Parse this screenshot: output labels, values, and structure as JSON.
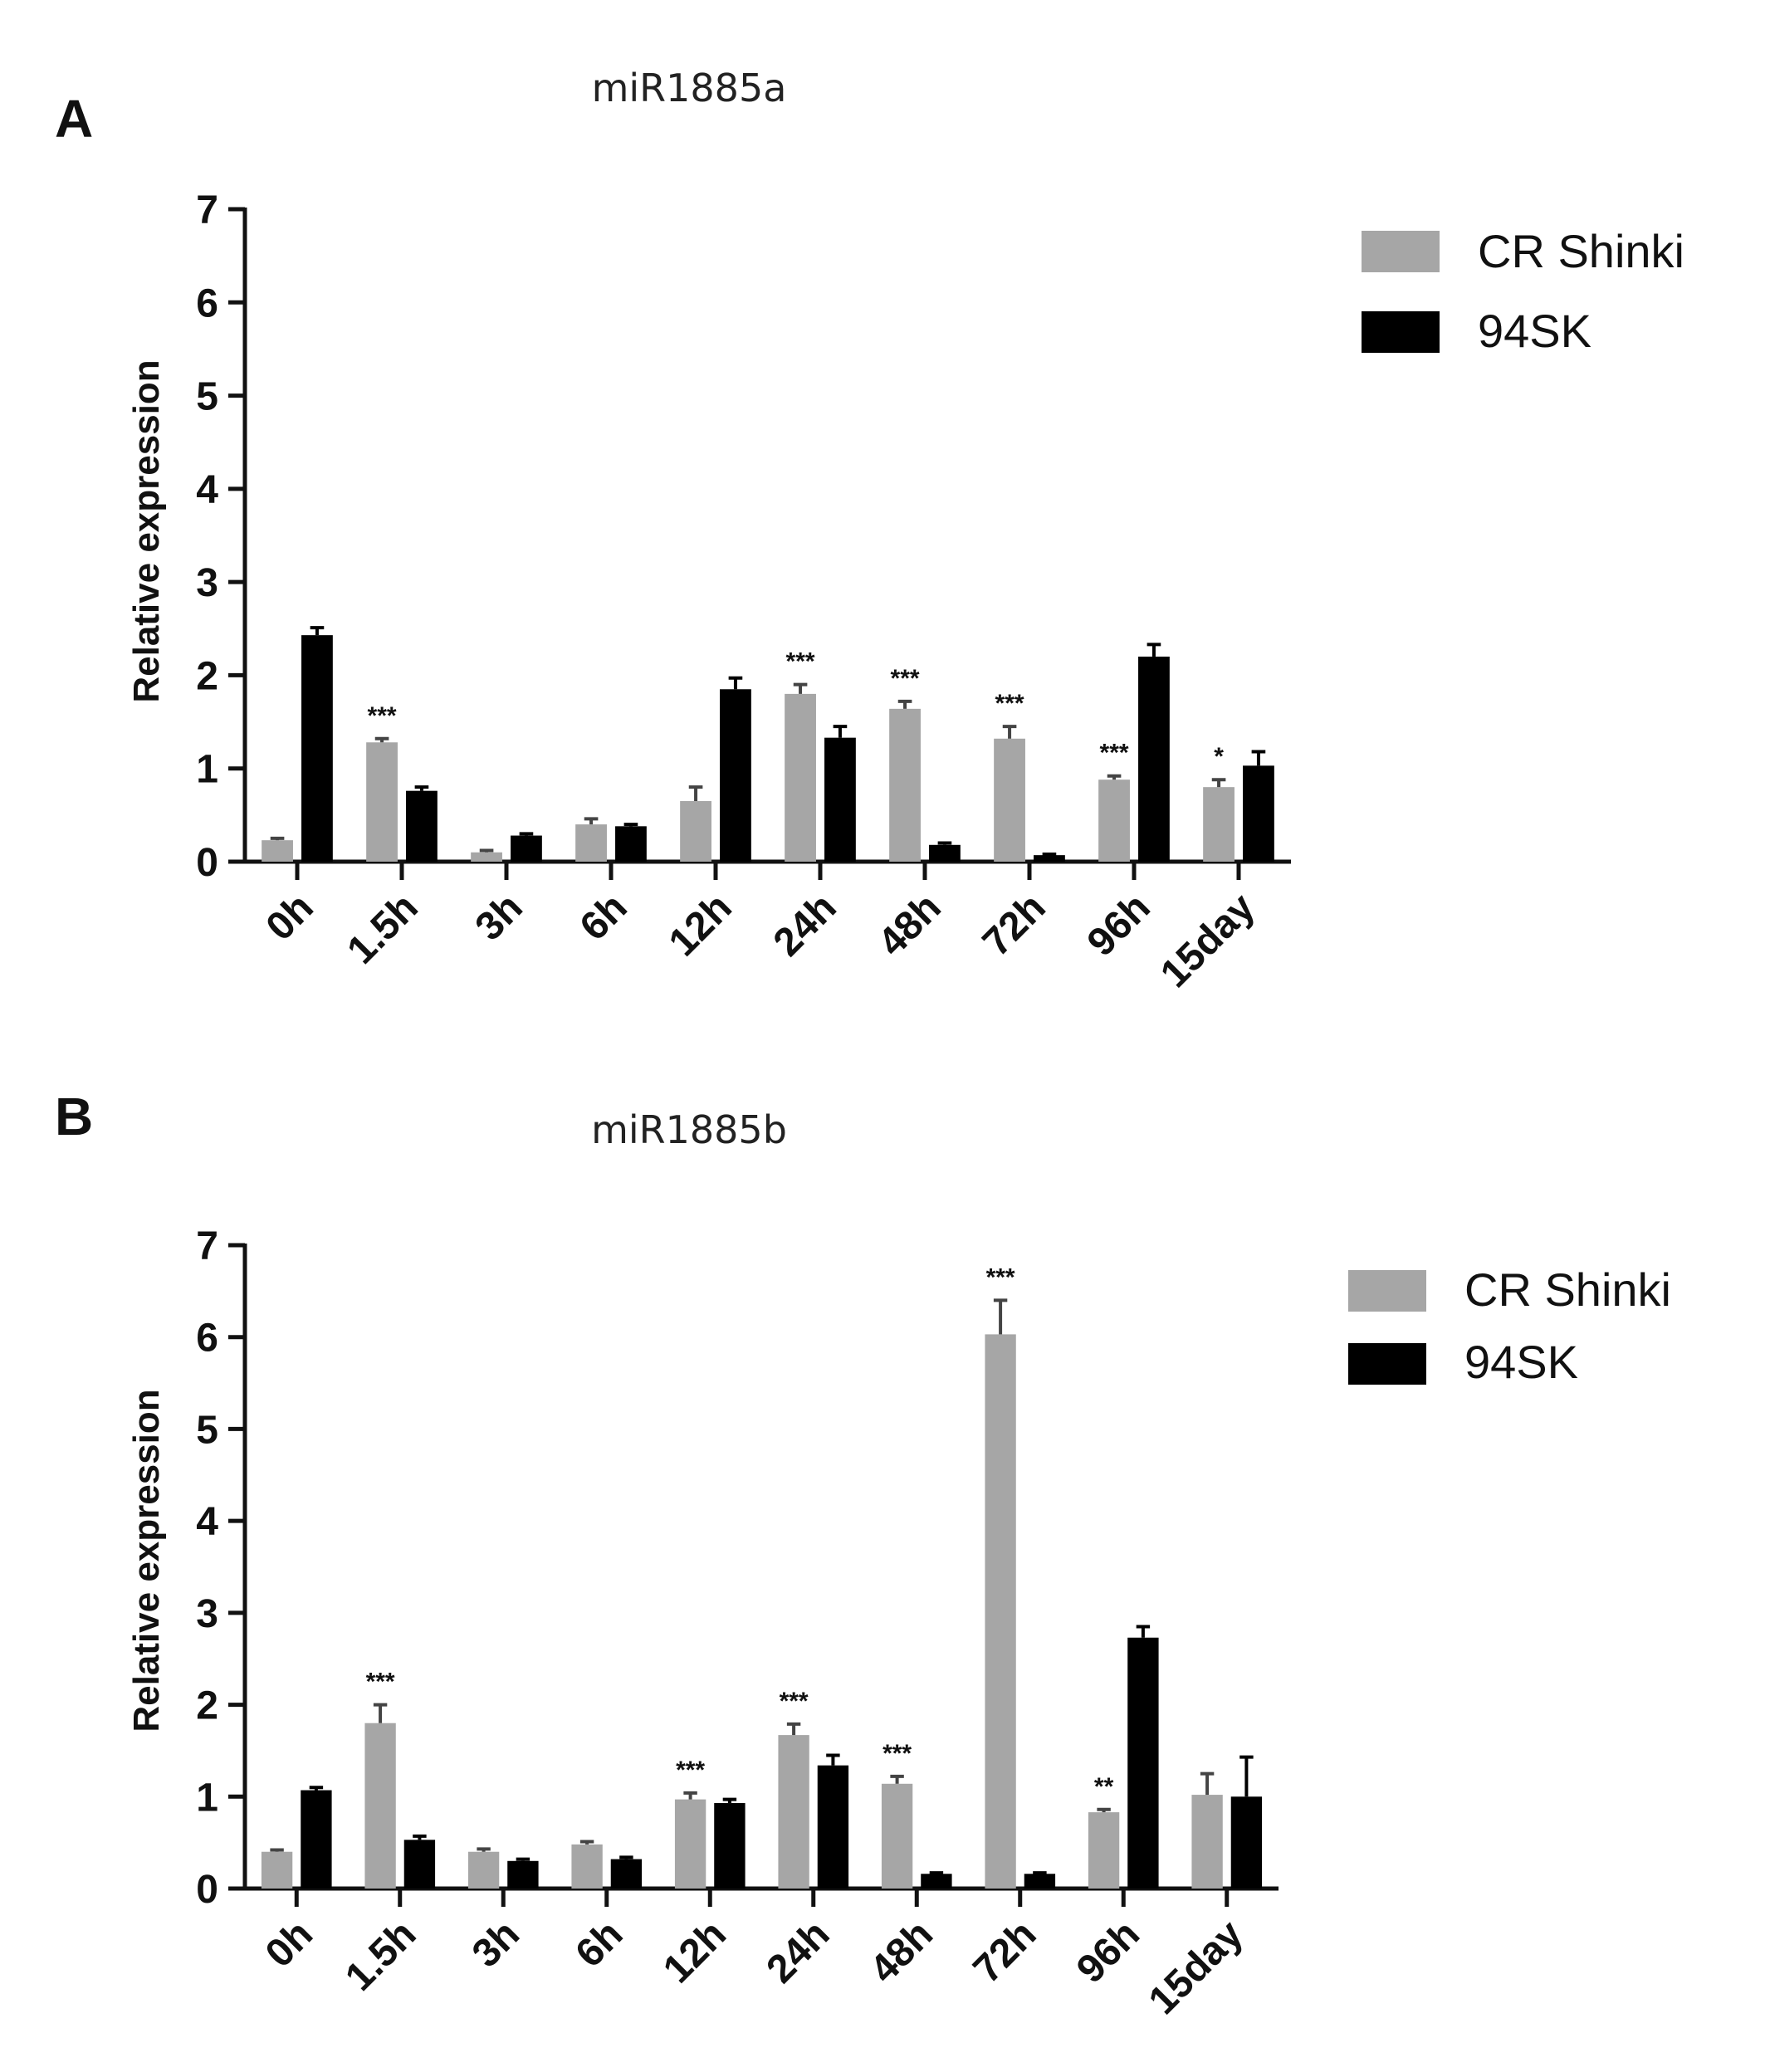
{
  "chart_data": [
    {
      "type": "bar",
      "panel": "A",
      "title": "miR1885a",
      "xlabel": "",
      "ylabel": "Relative expression",
      "ylim": [
        0,
        7
      ],
      "yticks": [
        "0",
        "1",
        "2",
        "3",
        "4",
        "5",
        "6",
        "7"
      ],
      "categories": [
        "0h",
        "1.5h",
        "3h",
        "6h",
        "12h",
        "24h",
        "48h",
        "72h",
        "96h",
        "15day"
      ],
      "series": [
        {
          "name": "CR Shinki",
          "color": "#a6a6a6",
          "values": [
            0.23,
            1.28,
            0.1,
            0.4,
            0.65,
            1.8,
            1.64,
            1.32,
            0.88,
            0.8
          ],
          "errors": [
            0.02,
            0.04,
            0.02,
            0.06,
            0.15,
            0.1,
            0.08,
            0.13,
            0.04,
            0.08
          ],
          "significance": [
            "",
            "***",
            "",
            "",
            "",
            "***",
            "***",
            "***",
            "***",
            "*"
          ]
        },
        {
          "name": "94SK",
          "color": "#000000",
          "values": [
            2.43,
            0.76,
            0.28,
            0.38,
            1.85,
            1.33,
            0.18,
            0.07,
            2.2,
            1.03
          ],
          "errors": [
            0.08,
            0.04,
            0.02,
            0.02,
            0.12,
            0.12,
            0.02,
            0.01,
            0.13,
            0.15
          ],
          "significance": [
            "",
            "",
            "",
            "",
            "",
            "",
            "",
            "",
            "",
            ""
          ]
        }
      ]
    },
    {
      "type": "bar",
      "panel": "B",
      "title": "miR1885b",
      "xlabel": "",
      "ylabel": "Relative expression",
      "ylim": [
        0,
        7
      ],
      "yticks": [
        "0",
        "1",
        "2",
        "3",
        "4",
        "5",
        "6",
        "7"
      ],
      "categories": [
        "0h",
        "1.5h",
        "3h",
        "6h",
        "12h",
        "24h",
        "48h",
        "72h",
        "96h",
        "15day"
      ],
      "series": [
        {
          "name": "CR Shinki",
          "color": "#a6a6a6",
          "values": [
            0.4,
            1.8,
            0.4,
            0.48,
            0.97,
            1.67,
            1.14,
            6.03,
            0.83,
            1.02
          ],
          "errors": [
            0.02,
            0.2,
            0.03,
            0.03,
            0.07,
            0.12,
            0.08,
            0.37,
            0.03,
            0.23
          ],
          "significance": [
            "",
            "***",
            "",
            "",
            "***",
            "***",
            "***",
            "***",
            "**",
            ""
          ]
        },
        {
          "name": "94SK",
          "color": "#000000",
          "values": [
            1.07,
            0.53,
            0.3,
            0.32,
            0.93,
            1.34,
            0.16,
            0.16,
            2.73,
            1.0
          ],
          "errors": [
            0.03,
            0.04,
            0.02,
            0.02,
            0.04,
            0.11,
            0.01,
            0.01,
            0.12,
            0.43
          ],
          "significance": [
            "",
            "",
            "",
            "",
            "",
            "",
            "",
            "",
            "",
            ""
          ]
        }
      ]
    }
  ]
}
